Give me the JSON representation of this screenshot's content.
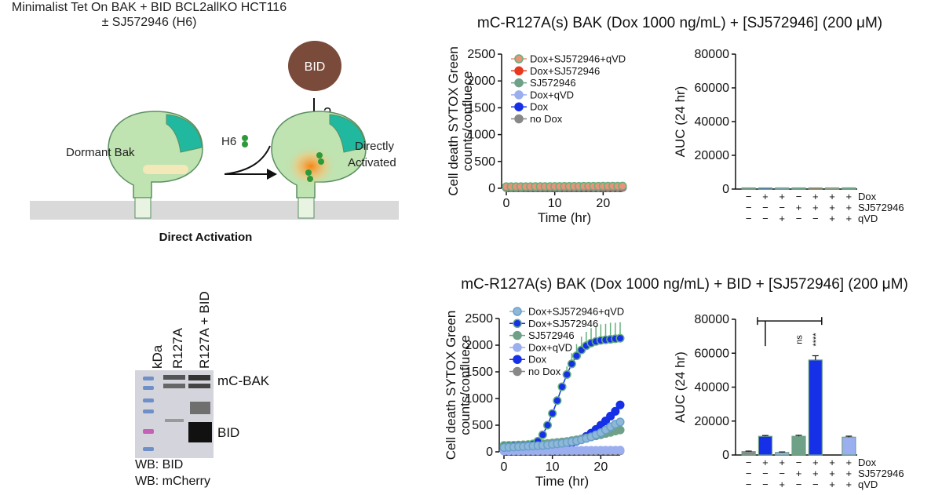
{
  "diagram": {
    "title_line1": "Minimalist Tet On BAK + BID BCL2allKO HCT116",
    "title_line2": "± SJ572946 (H6)",
    "bid_label": "BID",
    "question_mark": "?",
    "h6_label": "H6",
    "dormant_label": "Dormant Bak",
    "activated_line1": "Directly",
    "activated_line2": "Activated",
    "caption": "Direct Activation"
  },
  "blot": {
    "lanes": [
      "kDa",
      "R127A",
      "R127A + BID"
    ],
    "band_labels": [
      "mC-BAK",
      "BID"
    ],
    "wb_labels": [
      "WB: BID",
      "WB: mCherry"
    ]
  },
  "panels": {
    "top_title": "mC-R127A(s) BAK (Dox 1000 ng/mL) + [SJ572946] (200 μM)",
    "bottom_title": "mC-R127A(s) BAK (Dox 1000 ng/mL) + BID + [SJ572946] (200 μM)",
    "treatment_rows": [
      {
        "label": "Dox",
        "signs": [
          "−",
          "+",
          "+",
          "−",
          "+",
          "+",
          "+"
        ]
      },
      {
        "label": "SJ572946",
        "signs": [
          "−",
          "−",
          "−",
          "+",
          "+",
          "+",
          "+"
        ]
      },
      {
        "label": "qVD",
        "signs": [
          "−",
          "−",
          "+",
          "−",
          "−",
          "+",
          "+"
        ]
      }
    ]
  },
  "chart_data": [
    {
      "type": "line",
      "title": "mC-R127A(s) BAK (Dox 1000 ng/mL) + [SJ572946] (200 μM)",
      "xlabel": "Time (hr)",
      "ylabel": "Cell death SYTOX Green counts/confluence",
      "ylabel_line1": "Cell death SYTOX Green",
      "ylabel_line2": "counts/confluece",
      "xlim": [
        0,
        24
      ],
      "ylim": [
        0,
        2500
      ],
      "xticks": [
        0,
        10,
        20
      ],
      "yticks": [
        0,
        500,
        1000,
        1500,
        2000,
        2500
      ],
      "x": [
        0,
        1,
        2,
        3,
        4,
        5,
        6,
        7,
        8,
        9,
        10,
        11,
        12,
        13,
        14,
        15,
        16,
        17,
        18,
        19,
        20,
        21,
        22,
        23,
        24
      ],
      "series": [
        {
          "name": "Dox+SJ572946+qVD",
          "color": "#e8947a",
          "edge": "#66b07c",
          "values": [
            30,
            30,
            30,
            31,
            31,
            31,
            32,
            32,
            33,
            33,
            34,
            34,
            35,
            35,
            36,
            36,
            37,
            37,
            38,
            38,
            39,
            39,
            40,
            40,
            41
          ]
        },
        {
          "name": "Dox+SJ572946",
          "color": "#e8391f",
          "edge": "#e8391f",
          "values": [
            25,
            25,
            25,
            26,
            26,
            26,
            27,
            27,
            27,
            28,
            28,
            28,
            29,
            29,
            29,
            30,
            30,
            30,
            31,
            31,
            31,
            32,
            32,
            32,
            33
          ]
        },
        {
          "name": "SJ572946",
          "color": "#6fa088",
          "edge": "#6fa088",
          "values": [
            22,
            22,
            22,
            23,
            23,
            23,
            24,
            24,
            24,
            25,
            25,
            25,
            26,
            26,
            26,
            27,
            27,
            27,
            28,
            28,
            28,
            29,
            29,
            29,
            30
          ]
        },
        {
          "name": "Dox+qVD",
          "color": "#9aaef0",
          "edge": "#9aaef0",
          "values": [
            18,
            18,
            18,
            18,
            19,
            19,
            19,
            19,
            20,
            20,
            20,
            20,
            21,
            21,
            21,
            21,
            22,
            22,
            22,
            22,
            23,
            23,
            23,
            23,
            24
          ]
        },
        {
          "name": "Dox",
          "color": "#1630e8",
          "edge": "#1630e8",
          "values": [
            15,
            15,
            15,
            15,
            16,
            16,
            16,
            16,
            17,
            17,
            17,
            17,
            18,
            18,
            18,
            18,
            19,
            19,
            19,
            19,
            20,
            20,
            20,
            20,
            21
          ]
        },
        {
          "name": "no Dox",
          "color": "#888888",
          "edge": "#888888",
          "values": [
            12,
            12,
            12,
            12,
            12,
            13,
            13,
            13,
            13,
            13,
            14,
            14,
            14,
            14,
            14,
            15,
            15,
            15,
            15,
            15,
            16,
            16,
            16,
            16,
            16
          ]
        }
      ]
    },
    {
      "type": "bar",
      "ylabel": "AUC (24 hr)",
      "ylim": [
        0,
        80000
      ],
      "yticks": [
        0,
        20000,
        40000,
        60000,
        80000
      ],
      "values": [
        300,
        450,
        380,
        600,
        700,
        650,
        720
      ],
      "errors": [
        0,
        0,
        0,
        0,
        0,
        0,
        0
      ],
      "colors": [
        "#8a8a8a",
        "#1630e8",
        "#9aaef0",
        "#6fa088",
        "#e8391f",
        "#e8947a",
        "#6fa088"
      ]
    },
    {
      "type": "line",
      "title": "mC-R127A(s) BAK (Dox 1000 ng/mL) + BID + [SJ572946] (200 μM)",
      "xlabel": "Time (hr)",
      "ylabel": "Cell death SYTOX Green counts/confluence",
      "ylabel_line1": "Cell death SYTOX Green",
      "ylabel_line2": "counts/confluece",
      "xlim": [
        0,
        24
      ],
      "ylim": [
        0,
        2500
      ],
      "xticks": [
        0,
        10,
        20
      ],
      "yticks": [
        0,
        500,
        1000,
        1500,
        2000,
        2500
      ],
      "x": [
        0,
        1,
        2,
        3,
        4,
        5,
        6,
        7,
        8,
        9,
        10,
        11,
        12,
        13,
        14,
        15,
        16,
        17,
        18,
        19,
        20,
        21,
        22,
        23,
        24
      ],
      "series": [
        {
          "name": "Dox+SJ572946+qVD",
          "color": "#8fb8d8",
          "edge": "#6aa0c8",
          "values": [
            80,
            85,
            90,
            95,
            100,
            105,
            110,
            115,
            120,
            130,
            140,
            150,
            160,
            175,
            190,
            205,
            225,
            250,
            280,
            320,
            360,
            410,
            470,
            520,
            560
          ]
        },
        {
          "name": "Dox+SJ572946",
          "color": "#1630e8",
          "edge": "#66b07c",
          "values": [
            110,
            115,
            120,
            125,
            130,
            135,
            150,
            200,
            320,
            500,
            720,
            960,
            1220,
            1450,
            1650,
            1800,
            1910,
            1990,
            2040,
            2070,
            2090,
            2100,
            2110,
            2120,
            2130
          ],
          "errors": [
            0,
            0,
            0,
            0,
            0,
            0,
            0,
            0,
            0,
            0,
            0,
            0,
            0,
            150,
            200,
            220,
            250,
            260,
            280,
            290,
            300,
            300,
            310,
            300,
            300
          ]
        },
        {
          "name": "SJ572946",
          "color": "#6fa088",
          "edge": "#6fa088",
          "values": [
            120,
            122,
            125,
            128,
            132,
            136,
            140,
            145,
            150,
            158,
            166,
            175,
            185,
            195,
            210,
            225,
            240,
            260,
            280,
            300,
            320,
            345,
            365,
            390,
            410
          ]
        },
        {
          "name": "Dox+qVD",
          "color": "#9aaef0",
          "edge": "#9aaef0",
          "values": [
            20,
            20,
            21,
            21,
            22,
            22,
            23,
            23,
            24,
            24,
            25,
            25,
            26,
            26,
            27,
            27,
            28,
            28,
            29,
            29,
            30,
            30,
            31,
            31,
            32
          ]
        },
        {
          "name": "Dox",
          "color": "#1630e8",
          "edge": "#1630e8",
          "values": [
            90,
            90,
            92,
            92,
            94,
            95,
            96,
            98,
            100,
            105,
            110,
            120,
            135,
            150,
            170,
            200,
            240,
            290,
            350,
            420,
            500,
            580,
            670,
            760,
            880
          ]
        },
        {
          "name": "no Dox",
          "color": "#888888",
          "edge": "#888888",
          "values": [
            15,
            15,
            15,
            15,
            15,
            16,
            16,
            16,
            16,
            16,
            17,
            17,
            17,
            17,
            17,
            18,
            18,
            18,
            18,
            18,
            19,
            19,
            19,
            19,
            20
          ]
        }
      ]
    },
    {
      "type": "bar",
      "ylabel": "AUC (24 hr)",
      "ylim": [
        0,
        80000
      ],
      "yticks": [
        0,
        20000,
        40000,
        60000,
        80000
      ],
      "values": [
        2000,
        11000,
        1500,
        11000,
        56000,
        0,
        10500
      ],
      "errors": [
        300,
        500,
        300,
        600,
        2500,
        0,
        600
      ],
      "colors": [
        "#8a8a8a",
        "#1630e8",
        "#9aaef0",
        "#6fa088",
        "#1630e8",
        "#9aaef0",
        "#9aaef0"
      ],
      "annotations": {
        "ns": "ns",
        "stars": "****"
      }
    }
  ]
}
